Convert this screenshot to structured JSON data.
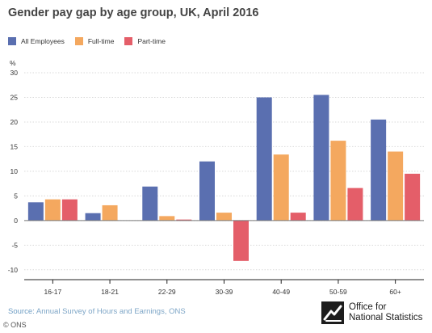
{
  "chart_data": {
    "type": "bar",
    "title": "Gender pay gap by age group, UK, April 2016",
    "ylabel": "%",
    "xlabel": "",
    "ylim": [
      -12,
      30
    ],
    "yticks": [
      30,
      25,
      20,
      15,
      10,
      5,
      0,
      -5,
      -10
    ],
    "grid": true,
    "legend_position": "top-left",
    "categories": [
      "16-17",
      "18-21",
      "22-29",
      "30-39",
      "40-49",
      "50-59",
      "60+"
    ],
    "series": [
      {
        "name": "All Employees",
        "color": "#5a6fb0",
        "values": [
          3.7,
          1.5,
          6.9,
          12.0,
          25.0,
          25.5,
          20.5
        ]
      },
      {
        "name": "Full-time",
        "color": "#f4a85f",
        "values": [
          4.3,
          3.1,
          0.9,
          1.6,
          13.4,
          16.2,
          14.0
        ]
      },
      {
        "name": "Part-time",
        "color": "#e45e69",
        "values": [
          4.3,
          0.0,
          0.2,
          -8.2,
          1.6,
          6.6,
          9.5
        ]
      }
    ]
  },
  "footer": {
    "source_label": "Source:",
    "source_text": "Annual Survey of Hours and Earnings, ONS",
    "copyright": "© ONS"
  },
  "logo": {
    "line1": "Office for",
    "line2": "National Statistics",
    "icon": "ons-logo-icon"
  }
}
